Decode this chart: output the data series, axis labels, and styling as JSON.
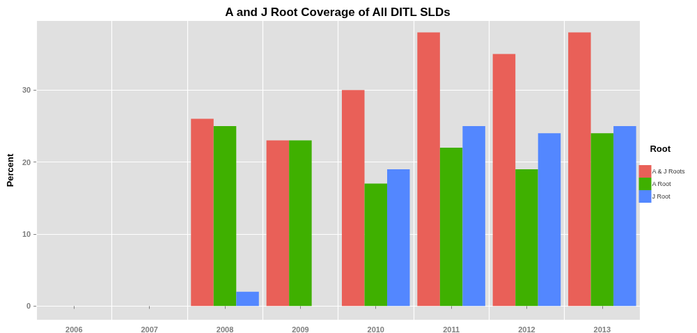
{
  "chart_data": {
    "type": "bar",
    "title": "A and J Root Coverage of All DITL SLDs",
    "ylabel": "Percent",
    "legend_title": "Root",
    "categories": [
      "2006",
      "2007",
      "2008",
      "2009",
      "2010",
      "2011",
      "2012",
      "2013"
    ],
    "series": [
      {
        "name": "A & J Roots",
        "color": "#e96058",
        "values": [
          null,
          null,
          26,
          23,
          30,
          38,
          35,
          38
        ]
      },
      {
        "name": "A Root",
        "color": "#3fb000",
        "values": [
          null,
          null,
          25,
          23,
          17,
          22,
          19,
          24
        ]
      },
      {
        "name": "J Root",
        "color": "#5387ff",
        "values": [
          null,
          null,
          2,
          null,
          19,
          25,
          24,
          25
        ]
      }
    ],
    "ylim": [
      -1.9,
      39.6
    ],
    "yticks": [
      0,
      10,
      20,
      30
    ],
    "grid": true,
    "legend": "right"
  }
}
